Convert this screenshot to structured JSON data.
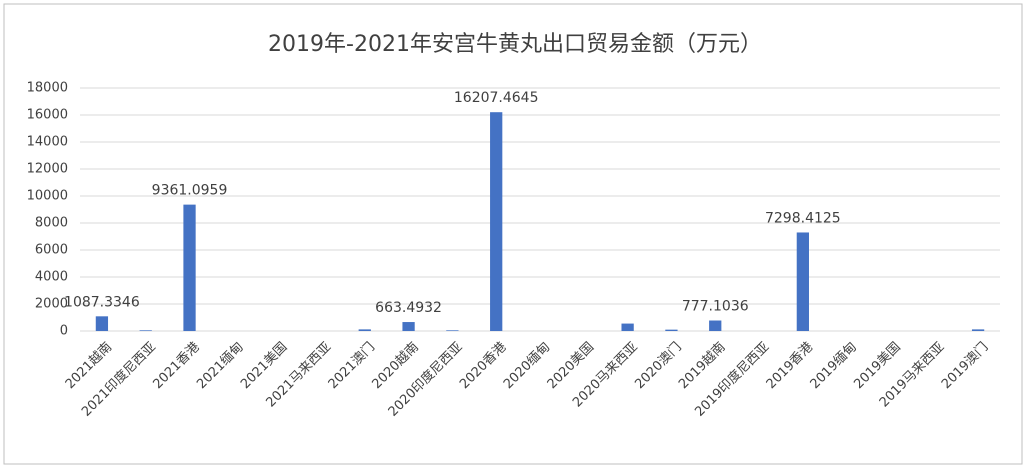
{
  "chart_data": {
    "type": "bar",
    "title": "2019年-2021年安宫牛黄丸出口贸易金额（万元）",
    "categories": [
      "2021越南",
      "2021印度尼西亚",
      "2021香港",
      "2021缅甸",
      "2021美国",
      "2021马来西亚",
      "2021澳门",
      "2020越南",
      "2020印度尼西亚",
      "2020香港",
      "2020缅甸",
      "2020美国",
      "2020马来西亚",
      "2020澳门",
      "2019越南",
      "2019印度尼西亚",
      "2019香港",
      "2019缅甸",
      "2019美国",
      "2019马来西亚",
      "2019澳门"
    ],
    "values": [
      1087.3346,
      50,
      9361.0959,
      0,
      0,
      0,
      120,
      663.4932,
      50,
      16207.4645,
      0,
      0,
      550,
      100,
      777.1036,
      0,
      7298.4125,
      0,
      0,
      0,
      120
    ],
    "value_labels": [
      "1087.3346",
      null,
      "9361.0959",
      null,
      null,
      null,
      null,
      "663.4932",
      null,
      "16207.4645",
      null,
      null,
      null,
      null,
      "777.1036",
      null,
      "7298.4125",
      null,
      null,
      null,
      null
    ],
    "color": "#4472c4",
    "ylim": [
      0,
      18000
    ],
    "yticks": [
      0,
      2000,
      4000,
      6000,
      8000,
      10000,
      12000,
      14000,
      16000,
      18000
    ],
    "grid": true
  }
}
